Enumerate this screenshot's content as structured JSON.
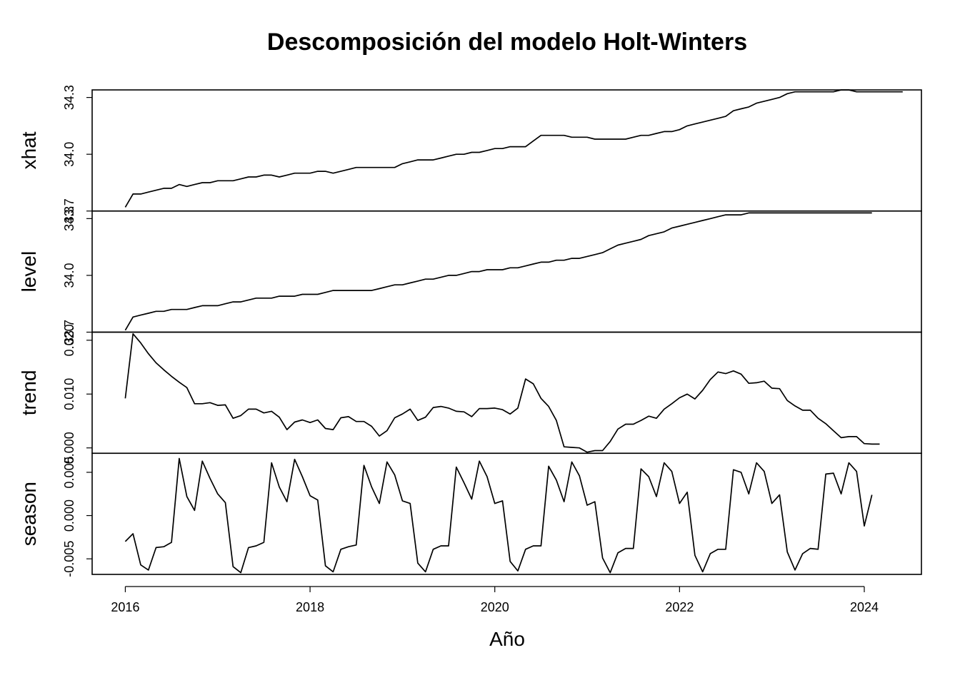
{
  "chart_data": {
    "type": "line",
    "title": "Descomposición del modelo Holt-Winters",
    "xlabel": "Año",
    "xlim": [
      2016,
      2024.08
    ],
    "x_ticks": [
      "2016",
      "2018",
      "2020",
      "2022",
      "2024"
    ],
    "x_tick_values": [
      2016,
      2018,
      2020,
      2022,
      2024
    ],
    "x_start": 2016,
    "x_step": 0.08333,
    "panels": [
      {
        "name": "xhat",
        "ylim": [
          33.7,
          34.34
        ],
        "yticks": [
          33.7,
          34.0,
          34.3
        ],
        "ytick_labels": [
          "33.7",
          "34.0",
          "34.3"
        ],
        "values": [
          33.72,
          33.79,
          33.79,
          33.8,
          33.81,
          33.82,
          33.82,
          33.84,
          33.83,
          33.84,
          33.85,
          33.85,
          33.86,
          33.86,
          33.86,
          33.87,
          33.88,
          33.88,
          33.89,
          33.89,
          33.88,
          33.89,
          33.9,
          33.9,
          33.9,
          33.91,
          33.91,
          33.9,
          33.91,
          33.92,
          33.93,
          33.93,
          33.93,
          33.93,
          33.93,
          33.93,
          33.95,
          33.96,
          33.97,
          33.97,
          33.97,
          33.98,
          33.99,
          34.0,
          34.0,
          34.01,
          34.01,
          34.02,
          34.03,
          34.03,
          34.04,
          34.04,
          34.04,
          34.07,
          34.1,
          34.1,
          34.1,
          34.1,
          34.09,
          34.09,
          34.09,
          34.08,
          34.08,
          34.08,
          34.08,
          34.08,
          34.09,
          34.1,
          34.1,
          34.11,
          34.12,
          34.12,
          34.13,
          34.15,
          34.16,
          34.17,
          34.18,
          34.19,
          34.2,
          34.23,
          34.24,
          34.25,
          34.27,
          34.28,
          34.29,
          34.3,
          34.32,
          34.33,
          34.33,
          34.33,
          34.33,
          34.33,
          34.33,
          34.34,
          34.34,
          34.33,
          34.33,
          34.33,
          34.33,
          34.33,
          34.33,
          34.33
        ]
      },
      {
        "name": "level",
        "ylim": [
          33.7,
          34.34
        ],
        "yticks": [
          33.7,
          34.0,
          34.3
        ],
        "ytick_labels": [
          "33.7",
          "34.0",
          "34.3"
        ],
        "values": [
          33.71,
          33.78,
          33.79,
          33.8,
          33.81,
          33.81,
          33.82,
          33.82,
          33.82,
          33.83,
          33.84,
          33.84,
          33.84,
          33.85,
          33.86,
          33.86,
          33.87,
          33.88,
          33.88,
          33.88,
          33.89,
          33.89,
          33.89,
          33.9,
          33.9,
          33.9,
          33.91,
          33.92,
          33.92,
          33.92,
          33.92,
          33.92,
          33.92,
          33.93,
          33.94,
          33.95,
          33.95,
          33.96,
          33.97,
          33.98,
          33.98,
          33.99,
          34.0,
          34.0,
          34.01,
          34.02,
          34.02,
          34.03,
          34.03,
          34.03,
          34.04,
          34.04,
          34.05,
          34.06,
          34.07,
          34.07,
          34.08,
          34.08,
          34.09,
          34.09,
          34.1,
          34.11,
          34.12,
          34.14,
          34.16,
          34.17,
          34.18,
          34.19,
          34.21,
          34.22,
          34.23,
          34.25,
          34.26,
          34.27,
          34.28,
          34.29,
          34.3,
          34.31,
          34.32,
          34.32,
          34.32,
          34.33,
          34.33,
          34.33,
          34.33,
          34.33,
          34.33,
          34.33,
          34.33,
          34.33,
          34.33,
          34.33,
          34.33,
          34.33,
          34.33,
          34.33,
          34.33,
          34.33
        ]
      },
      {
        "name": "trend",
        "ylim": [
          -0.001,
          0.0215
        ],
        "yticks": [
          0.0,
          0.01,
          0.02
        ],
        "ytick_labels": [
          "0.000",
          "0.010",
          "0.020"
        ],
        "values": [
          0.0092,
          0.0212,
          0.0195,
          0.0175,
          0.0158,
          0.0145,
          0.0133,
          0.0122,
          0.0112,
          0.0082,
          0.0082,
          0.0084,
          0.0079,
          0.008,
          0.0055,
          0.006,
          0.0072,
          0.0072,
          0.0065,
          0.0068,
          0.0057,
          0.0034,
          0.0048,
          0.0052,
          0.0047,
          0.0052,
          0.0036,
          0.0034,
          0.0056,
          0.0058,
          0.0049,
          0.0049,
          0.004,
          0.0022,
          0.0032,
          0.0056,
          0.0063,
          0.0072,
          0.0051,
          0.0057,
          0.0075,
          0.0077,
          0.0074,
          0.0068,
          0.0067,
          0.0058,
          0.0073,
          0.0073,
          0.0074,
          0.0071,
          0.0063,
          0.0074,
          0.0128,
          0.0119,
          0.0092,
          0.0077,
          0.0051,
          0.0002,
          0.0001,
          0.0,
          -0.0008,
          -0.0005,
          -0.0005,
          0.0012,
          0.0035,
          0.0044,
          0.0044,
          0.0051,
          0.0059,
          0.0055,
          0.0072,
          0.0082,
          0.0093,
          0.01,
          0.0091,
          0.0107,
          0.0127,
          0.0141,
          0.0138,
          0.0143,
          0.0137,
          0.012,
          0.0121,
          0.0124,
          0.0111,
          0.011,
          0.0088,
          0.0078,
          0.007,
          0.007,
          0.0055,
          0.0045,
          0.0032,
          0.0019,
          0.0021,
          0.0021,
          0.0008,
          0.0007,
          0.0007
        ]
      },
      {
        "name": "season",
        "ylim": [
          -0.0068,
          0.0072
        ],
        "yticks": [
          -0.005,
          0.0,
          0.005
        ],
        "ytick_labels": [
          "-0.005",
          "0.000",
          "0.005"
        ],
        "values": [
          -0.003,
          -0.0021,
          -0.0057,
          -0.0063,
          -0.0037,
          -0.0036,
          -0.0031,
          0.0066,
          0.0022,
          0.0006,
          0.0063,
          0.0043,
          0.0025,
          0.0015,
          -0.0059,
          -0.0066,
          -0.0037,
          -0.0035,
          -0.0031,
          0.0061,
          0.0033,
          0.0016,
          0.0065,
          0.0045,
          0.0023,
          0.0018,
          -0.0058,
          -0.0065,
          -0.0039,
          -0.0036,
          -0.0034,
          0.0058,
          0.0033,
          0.0014,
          0.0062,
          0.0047,
          0.0017,
          0.0014,
          -0.0055,
          -0.0065,
          -0.0039,
          -0.0035,
          -0.0035,
          0.0056,
          0.0038,
          0.0019,
          0.0063,
          0.0045,
          0.0014,
          0.0017,
          -0.0053,
          -0.0064,
          -0.0039,
          -0.0035,
          -0.0035,
          0.0057,
          0.0041,
          0.0016,
          0.0062,
          0.0046,
          0.0012,
          0.0016,
          -0.0049,
          -0.0066,
          -0.0043,
          -0.0038,
          -0.0038,
          0.0054,
          0.0045,
          0.0022,
          0.0061,
          0.0051,
          0.0014,
          0.0027,
          -0.0046,
          -0.0065,
          -0.0044,
          -0.0039,
          -0.0039,
          0.0053,
          0.005,
          0.0025,
          0.0061,
          0.0051,
          0.0014,
          0.0024,
          -0.0042,
          -0.0063,
          -0.0044,
          -0.0038,
          -0.0039,
          0.0048,
          0.0049,
          0.0025,
          0.0061,
          0.0051,
          -0.0012,
          0.0024
        ]
      }
    ]
  }
}
